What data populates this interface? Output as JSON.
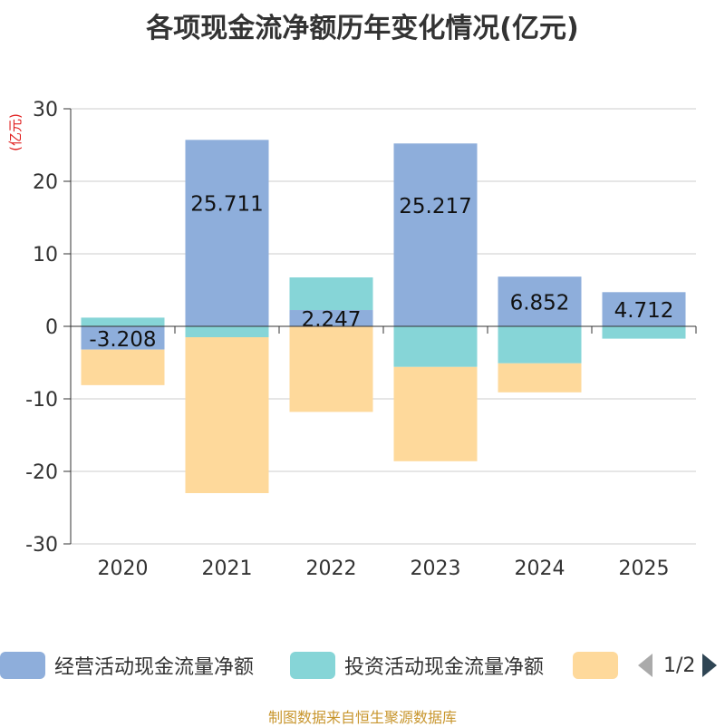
{
  "chart_data": {
    "type": "bar",
    "stacked": true,
    "title": "各项现金流净额历年变化情况(亿元)",
    "ylabel": "(亿元)",
    "xlabel": "",
    "ylim": [
      -30,
      30
    ],
    "yticks": [
      30,
      20,
      10,
      0,
      -10,
      -20,
      -30
    ],
    "categories": [
      "2020",
      "2021",
      "2022",
      "2023",
      "2024",
      "2025"
    ],
    "series": [
      {
        "name": "经营活动现金流量净额",
        "color": "#8eaedb",
        "values": [
          -3.208,
          25.711,
          2.247,
          25.217,
          6.852,
          4.712
        ],
        "labels": [
          "-3.208",
          "25.711",
          "2.247",
          "25.217",
          "6.852",
          "4.712"
        ]
      },
      {
        "name": "投资活动现金流量净额",
        "color": "#86d5d7",
        "values": [
          1.2,
          -1.5,
          4.5,
          -5.6,
          -5.1,
          -1.7
        ]
      },
      {
        "name": "",
        "color": "#fed99b",
        "values": [
          -4.9,
          -21.5,
          -11.8,
          -13.0,
          -4.0,
          0
        ]
      }
    ],
    "grid": true,
    "legend_position": "bottom"
  },
  "pager": {
    "text": "1/2"
  },
  "source": "制图数据来自恒生聚源数据库"
}
